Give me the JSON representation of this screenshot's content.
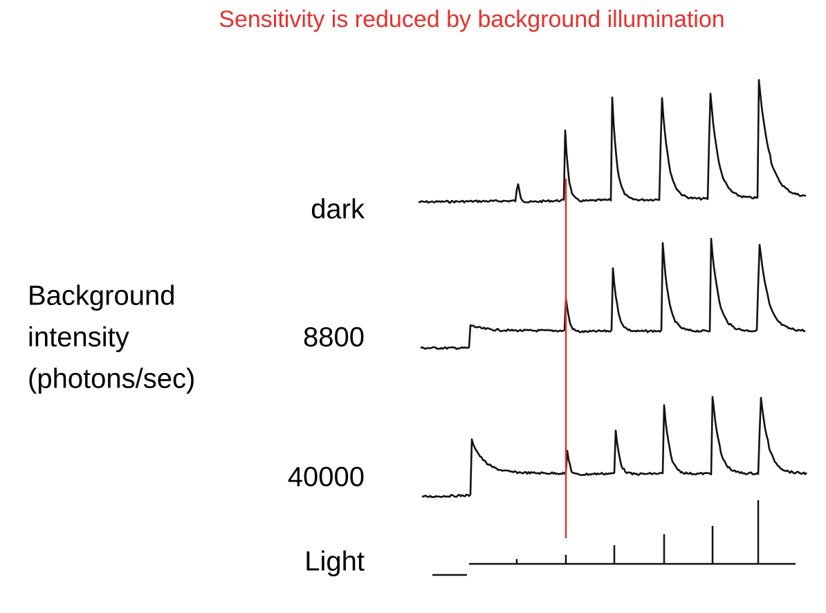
{
  "title": "Sensitivity is reduced by background illumination",
  "axis_label": [
    "Background",
    "intensity",
    "(photons/sec)"
  ],
  "traces": [
    {
      "label": "dark"
    },
    {
      "label": "8800"
    },
    {
      "label": "40000"
    }
  ],
  "stimulus": {
    "label": "Light"
  }
}
